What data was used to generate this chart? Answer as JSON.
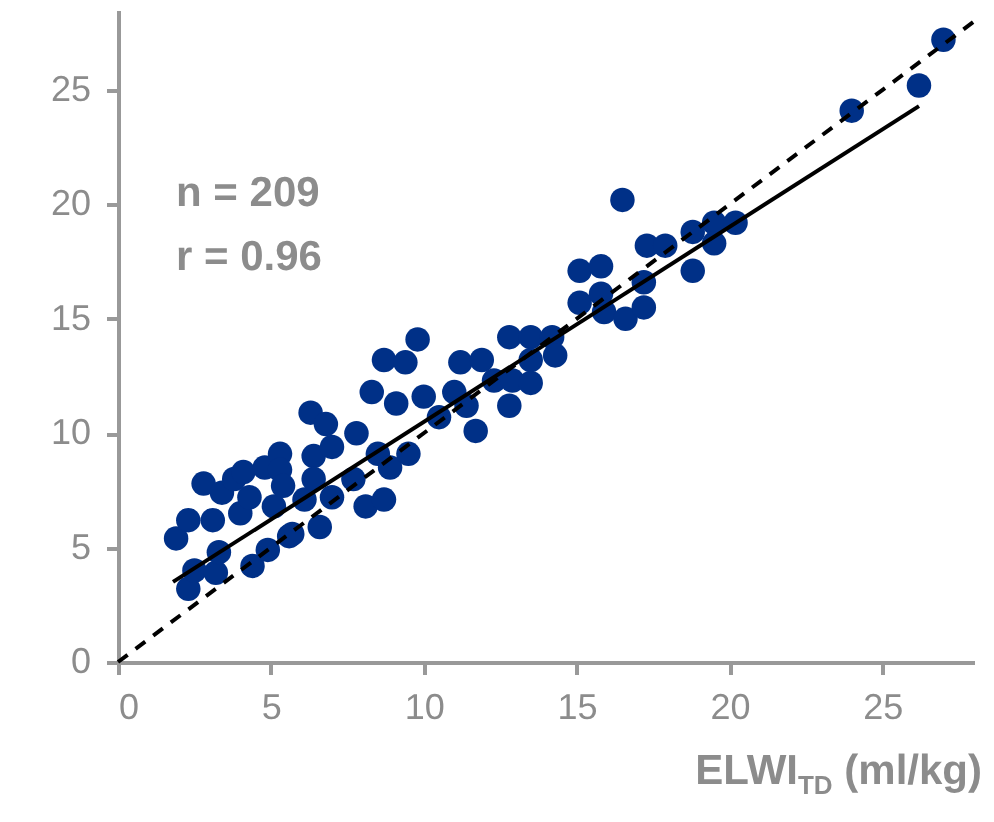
{
  "chart_data": {
    "type": "scatter",
    "xlabel": "ELWI$_{TD}$ (ml/kg)",
    "annotations": [
      "n = 209",
      "r = 0.96"
    ],
    "xlim": [
      0,
      28
    ],
    "ylim": [
      0,
      28.5
    ],
    "xticks": [
      0,
      5,
      10,
      15,
      20,
      25
    ],
    "yticks": [
      0,
      5,
      10,
      15,
      20,
      25
    ],
    "marker": "circle",
    "grid": false,
    "series": [
      {
        "color": "#003087",
        "x": [
          1.9,
          2.3,
          2.3,
          2.5,
          2.8,
          3.1,
          3.2,
          3.3,
          3.4,
          3.8,
          4.0,
          4.1,
          4.3,
          4.4,
          4.8,
          4.9,
          5.1,
          5.3,
          5.3,
          5.4,
          5.6,
          5.7,
          6.1,
          6.3,
          6.4,
          6.4,
          6.6,
          6.8,
          7.0,
          7.0,
          7.7,
          7.8,
          8.1,
          8.3,
          8.5,
          8.7,
          8.7,
          8.9,
          9.1,
          9.4,
          9.5,
          9.8,
          10.0,
          10.5,
          11.0,
          11.2,
          11.4,
          11.7,
          11.9,
          12.3,
          12.8,
          12.8,
          12.9,
          13.5,
          13.5,
          13.5,
          14.2,
          14.3,
          15.1,
          15.1,
          15.8,
          15.8,
          15.9,
          16.5,
          16.6,
          17.2,
          17.2,
          17.3,
          17.9,
          18.8,
          18.8,
          19.5,
          19.5,
          20.2,
          24.0,
          26.2,
          27.0
        ],
        "values": [
          5.4,
          6.2,
          3.2,
          4.0,
          7.8,
          6.2,
          3.9,
          4.8,
          7.4,
          8.0,
          6.5,
          8.3,
          7.2,
          4.2,
          8.5,
          4.9,
          6.8,
          9.1,
          8.4,
          7.7,
          5.5,
          5.6,
          7.1,
          10.9,
          9.0,
          8.0,
          5.9,
          10.4,
          9.4,
          7.2,
          8.0,
          10.0,
          6.8,
          11.8,
          9.1,
          7.1,
          13.2,
          8.5,
          11.3,
          13.1,
          9.1,
          14.1,
          11.6,
          10.7,
          11.8,
          13.1,
          11.2,
          10.1,
          13.2,
          12.3,
          14.2,
          11.2,
          12.3,
          14.2,
          13.2,
          12.2,
          14.2,
          13.4,
          17.1,
          15.7,
          17.3,
          16.1,
          15.3,
          20.2,
          15.0,
          16.6,
          15.5,
          18.2,
          18.2,
          18.8,
          17.1,
          19.2,
          18.3,
          19.2,
          24.1,
          25.2,
          27.2
        ]
      },
      {
        "type": "line",
        "color": "#000000",
        "line_style": "solid",
        "marker": "none",
        "x": [
          1.8,
          26.2
        ],
        "values": [
          3.5,
          24.3
        ]
      },
      {
        "type": "line",
        "color": "#000000",
        "line_style": "dashed",
        "marker": "none",
        "x": [
          0,
          28
        ],
        "values": [
          0,
          28
        ]
      }
    ]
  }
}
